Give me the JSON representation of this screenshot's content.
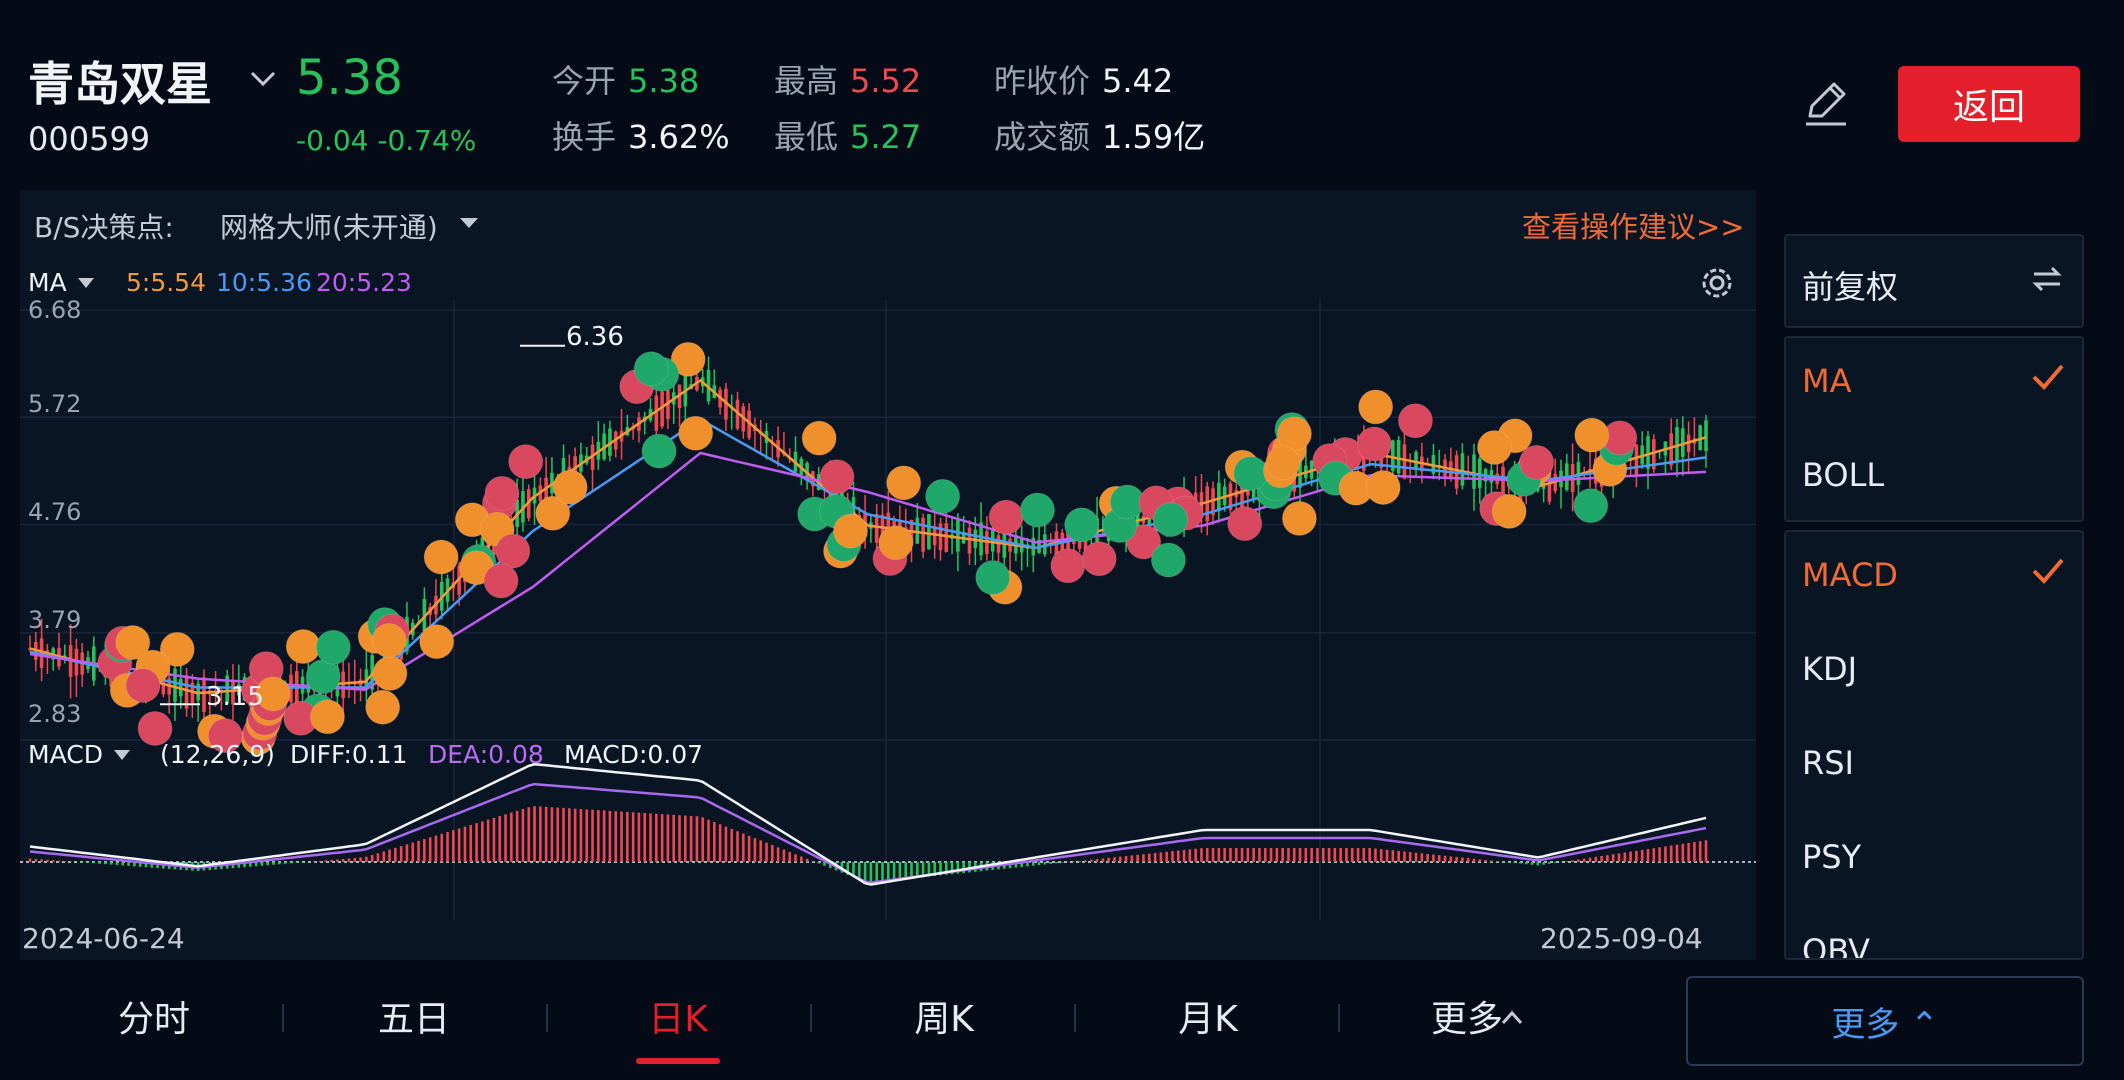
{
  "header": {
    "stock_name": "青岛双星",
    "stock_code": "000599",
    "last_price": "5.38",
    "change": "-0.04 -0.74%",
    "quotes": {
      "open_label": "今开",
      "open_value": "5.38",
      "high_label": "最高",
      "high_value": "5.52",
      "prev_close_label": "昨收价",
      "prev_close_value": "5.42",
      "turnover_label": "换手",
      "turnover_value": "3.62%",
      "low_label": "最低",
      "low_value": "5.27",
      "amount_label": "成交额",
      "amount_value": "1.59亿"
    },
    "back_label": "返回",
    "colors": {
      "up": "#f0484e",
      "down": "#25c25b",
      "accent": "#e41e2a"
    }
  },
  "chart": {
    "bs_label": "B/S决策点:",
    "grid_master": "网格大师(未开通)",
    "advice_link": "查看操作建议>>",
    "ma": {
      "label": "MA",
      "ma5": "5:5.54",
      "ma10": "10:5.36",
      "ma20": "20:5.23"
    },
    "y_ticks": [
      "6.68",
      "5.72",
      "4.76",
      "3.79",
      "2.83"
    ],
    "high_marker": "6.36",
    "low_marker": "3.15",
    "macd": {
      "label": "MACD",
      "params": "(12,26,9)",
      "diff": "DIFF:0.11",
      "dea": "DEA:0.08",
      "macd": "MACD:0.07"
    },
    "date_start": "2024-06-24",
    "date_end": "2025-09-04"
  },
  "chart_data": {
    "type": "line",
    "title": "",
    "x_range": [
      "2024-06-24",
      "2025-09-04"
    ],
    "ylim": [
      2.83,
      6.68
    ],
    "y_ticks": [
      6.68,
      5.72,
      4.76,
      3.79,
      2.83
    ],
    "series": [
      {
        "name": "5",
        "last": 5.54,
        "x": [
          0,
          10,
          20,
          30,
          40,
          50,
          60,
          70,
          80,
          90,
          100
        ],
        "values": [
          3.65,
          3.25,
          3.35,
          5.0,
          6.05,
          4.75,
          4.55,
          4.95,
          5.4,
          5.1,
          5.54
        ]
      },
      {
        "name": "10",
        "last": 5.36,
        "x": [
          0,
          10,
          20,
          30,
          40,
          50,
          60,
          70,
          80,
          90,
          100
        ],
        "values": [
          3.62,
          3.3,
          3.3,
          4.7,
          5.7,
          4.85,
          4.55,
          4.85,
          5.3,
          5.15,
          5.36
        ]
      },
      {
        "name": "20",
        "last": 5.23,
        "x": [
          0,
          10,
          20,
          30,
          40,
          50,
          60,
          70,
          80,
          90,
          100
        ],
        "values": [
          3.6,
          3.38,
          3.28,
          4.2,
          5.4,
          5.05,
          4.6,
          4.75,
          5.2,
          5.15,
          5.23
        ]
      }
    ],
    "annotations": {
      "high": 6.36,
      "low": 3.15
    },
    "grid": true,
    "macd": {
      "diff": 0.11,
      "dea": 0.08,
      "macd": 0.07
    }
  },
  "side_panel": {
    "adjust_label": "前复权",
    "main_indicators": [
      "MA",
      "BOLL"
    ],
    "sub_indicators": [
      "MACD",
      "KDJ",
      "RSI",
      "PSY",
      "OBV"
    ]
  },
  "tabs": [
    "分时",
    "五日",
    "日K",
    "周K",
    "月K",
    "更多"
  ],
  "more_button": "更多"
}
